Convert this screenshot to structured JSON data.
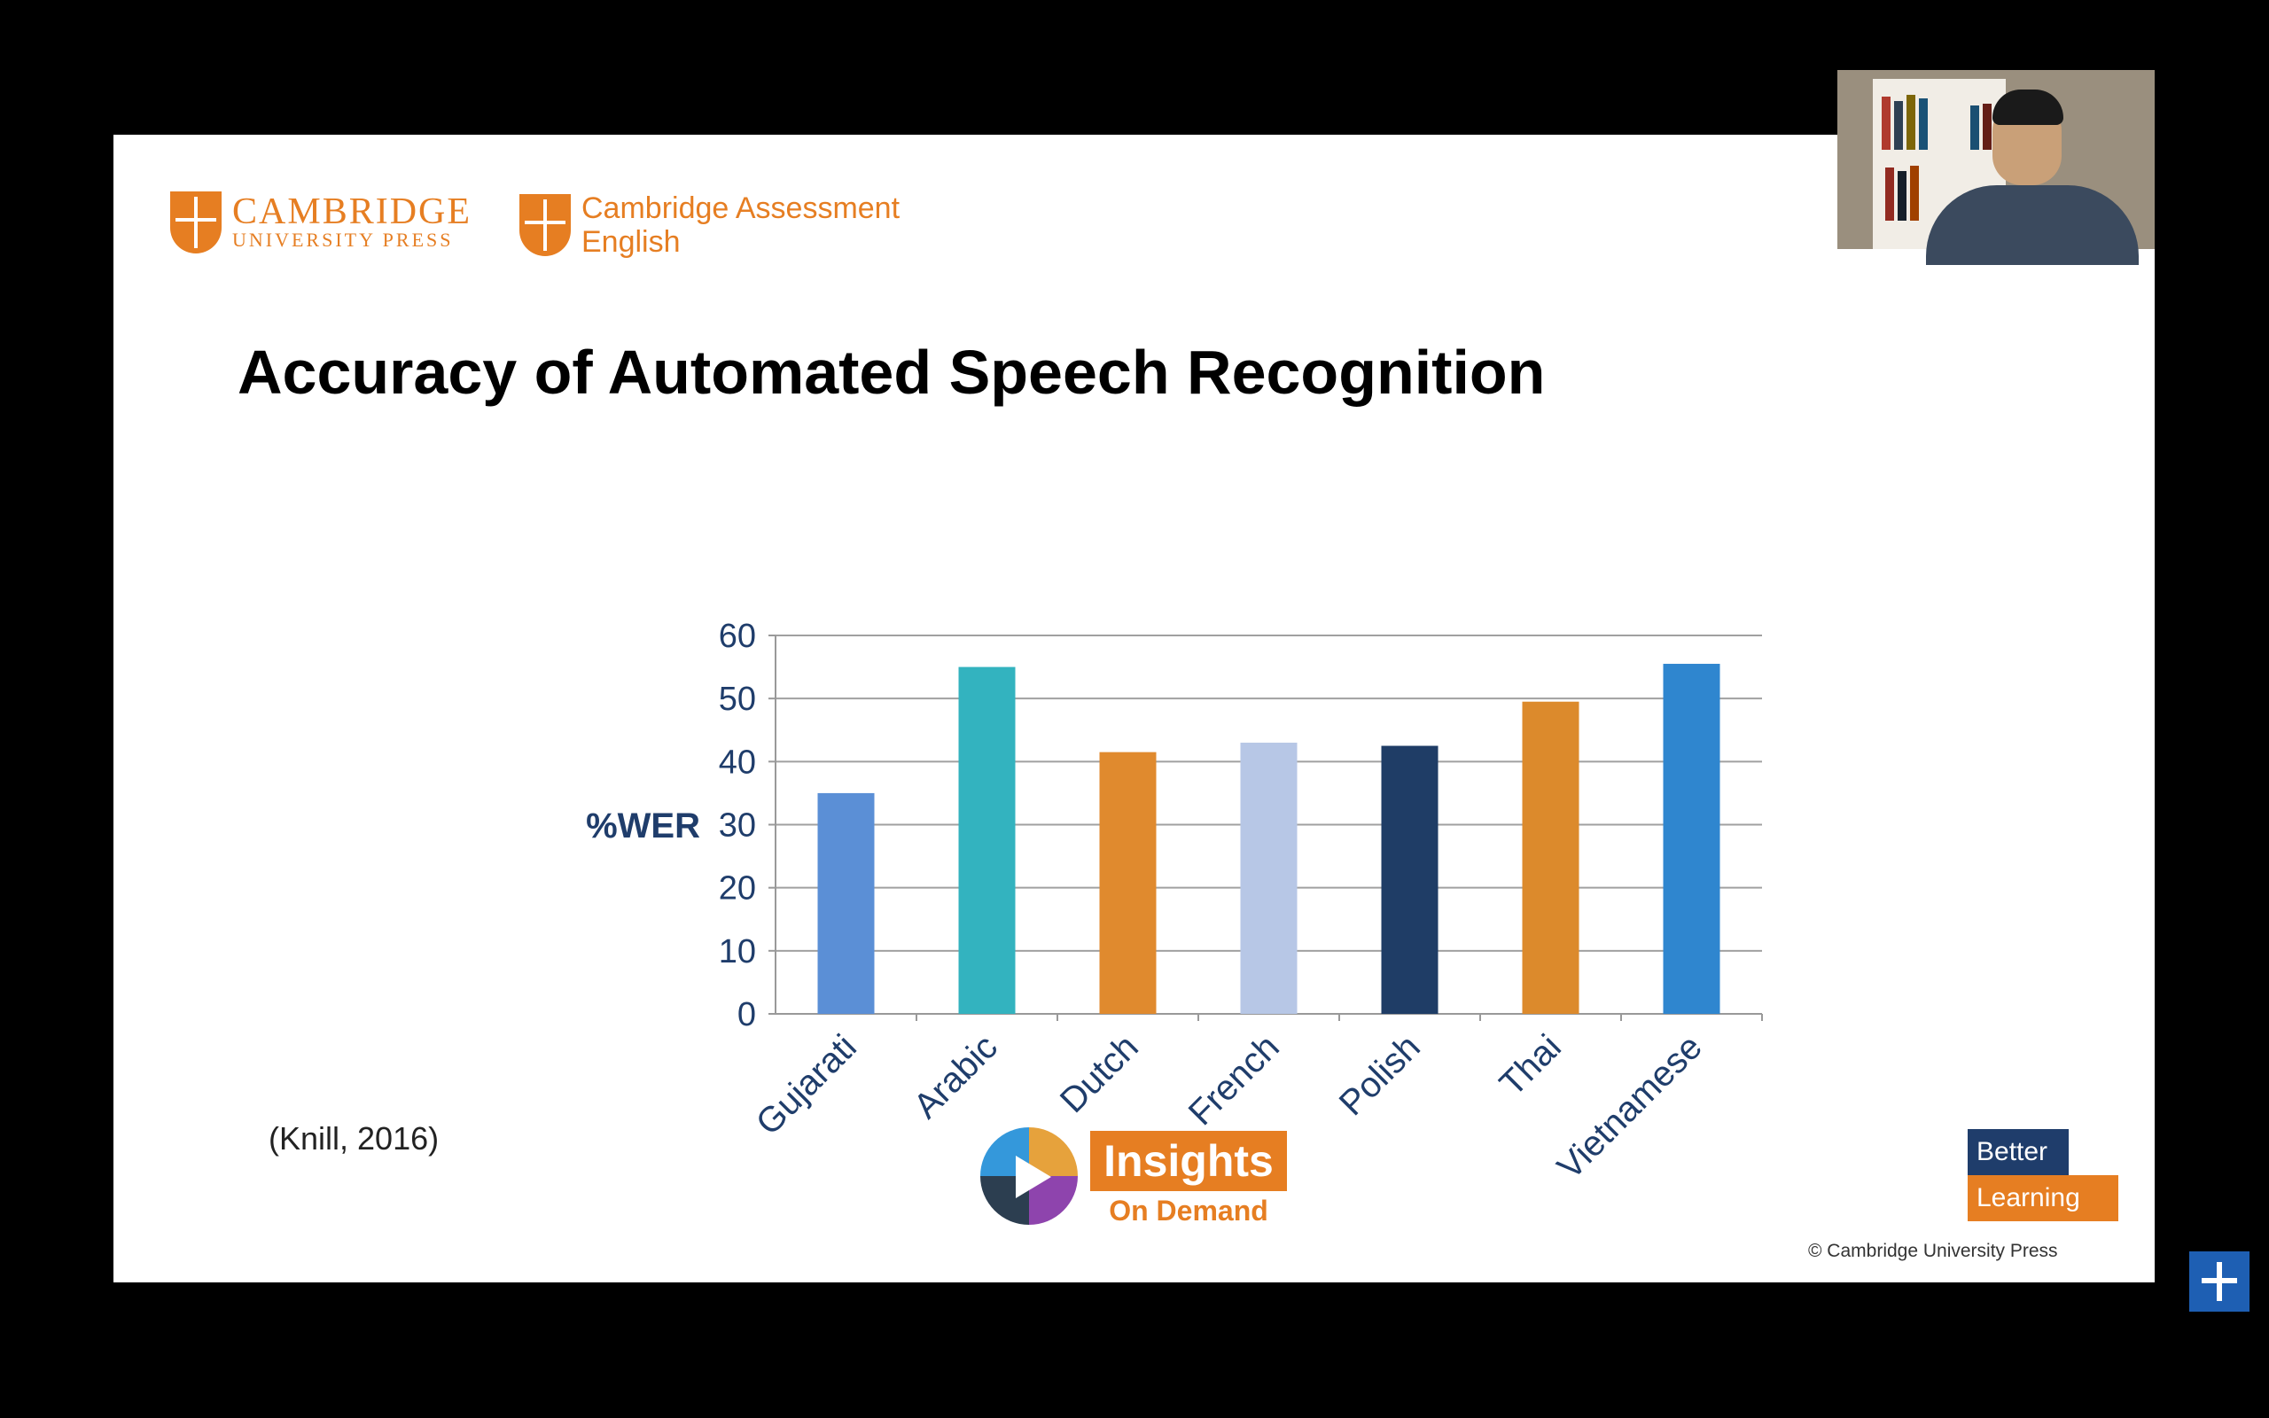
{
  "logos": {
    "cup_line1": "CAMBRIDGE",
    "cup_line2": "UNIVERSITY PRESS",
    "cae_line1": "Cambridge Assessment",
    "cae_line2": "English"
  },
  "slide_title": "Accuracy of Automated Speech Recognition",
  "citation": "(Knill, 2016)",
  "insights": {
    "word": "Insights",
    "sub": "On Demand"
  },
  "better_learning": {
    "line1": "Better",
    "line2": "Learning"
  },
  "copyright": "© Cambridge University Press",
  "chart_data": {
    "type": "bar",
    "title": "",
    "xlabel": "",
    "ylabel": "%WER",
    "ylim": [
      0,
      60
    ],
    "yticks": [
      0,
      10,
      20,
      30,
      40,
      50,
      60
    ],
    "categories": [
      "Gujarati",
      "Arabic",
      "Dutch",
      "French",
      "Polish",
      "Thai",
      "Vietnamese"
    ],
    "values": [
      35,
      55,
      41.5,
      43,
      42.5,
      49.5,
      55.5
    ],
    "colors": [
      "#5b8fd6",
      "#33b3bf",
      "#e08a2e",
      "#b7c7e6",
      "#1f3d66",
      "#dc8a2c",
      "#2f86cf"
    ],
    "grid": true
  }
}
